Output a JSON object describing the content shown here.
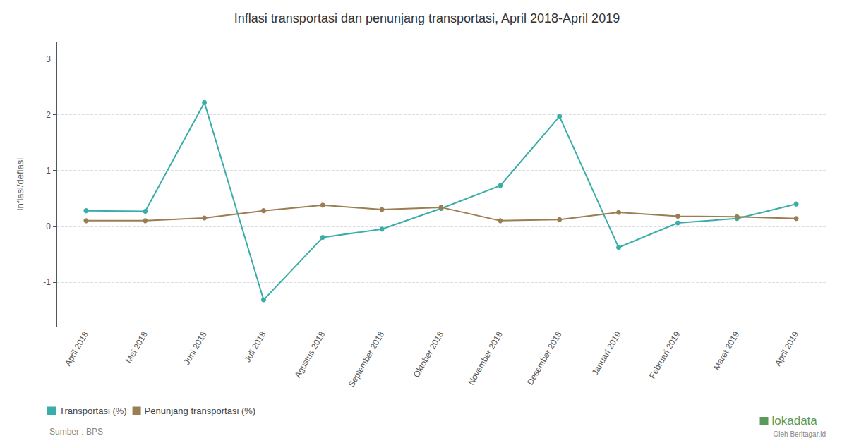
{
  "chart_data": {
    "type": "line",
    "title": "Inflasi transportasi dan penunjang transportasi, April 2018-April 2019",
    "ylabel": "Inflasi/deflasi",
    "categories": [
      "April 2018",
      "Mei 2018",
      "Juni 2018",
      "Juli 2018",
      "Agustus 2018",
      "September 2018",
      "Oktober 2018",
      "November 2018",
      "Desember 2018",
      "Januari 2019",
      "Februari 2019",
      "Maret 2019",
      "April 2019"
    ],
    "series": [
      {
        "name": "Transportasi (%)",
        "color": "#3aada8",
        "values": [
          0.28,
          0.27,
          2.22,
          -1.32,
          -0.2,
          -0.05,
          0.32,
          0.73,
          1.97,
          -0.38,
          0.06,
          0.14,
          0.4
        ]
      },
      {
        "name": "Penunjang transportasi (%)",
        "color": "#9b7d52",
        "values": [
          0.1,
          0.1,
          0.15,
          0.28,
          0.38,
          0.3,
          0.34,
          0.1,
          0.12,
          0.25,
          0.18,
          0.17,
          0.14
        ]
      }
    ],
    "ylim": [
      -1.8,
      3.3
    ],
    "yticks": [
      -1,
      0,
      1,
      2,
      3
    ],
    "grid": true,
    "legend": "bottom",
    "marker": "circle",
    "line_style": "solid",
    "annotations": [
      {
        "text": "Sumber : BPS",
        "color": "#888888"
      },
      {
        "text": "lokadata",
        "color": "#5a9a5a"
      },
      {
        "text": "Oleh Beritagar.id",
        "color": "#888888"
      }
    ]
  }
}
